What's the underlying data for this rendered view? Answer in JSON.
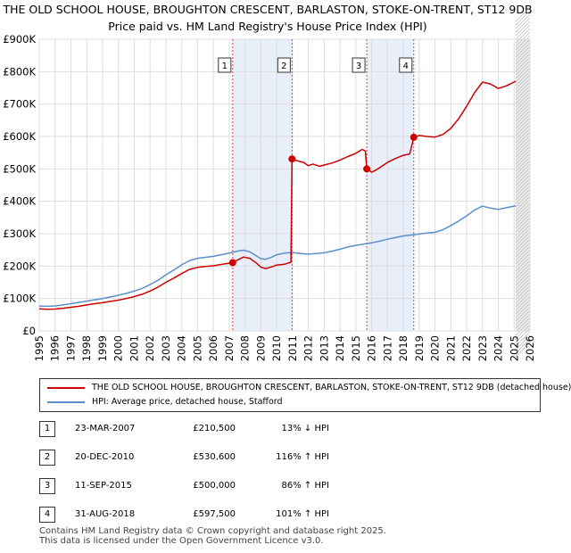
{
  "chart_data": {
    "type": "line",
    "title": "THE OLD SCHOOL HOUSE, BROUGHTON CRESCENT, BARLASTON, STOKE-ON-TRENT, ST12 9DB",
    "subtitle": "Price paid vs. HM Land Registry's House Price Index (HPI)",
    "xlabel": "",
    "ylabel": "",
    "xlim": [
      1995,
      2026
    ],
    "ylim": [
      0,
      900000
    ],
    "x_ticks": [
      "1995",
      "1996",
      "1997",
      "1998",
      "1999",
      "2000",
      "2001",
      "2002",
      "2003",
      "2004",
      "2005",
      "2006",
      "2007",
      "2008",
      "2009",
      "2010",
      "2011",
      "2012",
      "2013",
      "2014",
      "2015",
      "2016",
      "2017",
      "2018",
      "2019",
      "2020",
      "2021",
      "2022",
      "2023",
      "2024",
      "2025",
      "2026"
    ],
    "y_ticks": [
      {
        "value": 0,
        "label": "£0"
      },
      {
        "value": 100000,
        "label": "£100K"
      },
      {
        "value": 200000,
        "label": "£200K"
      },
      {
        "value": 300000,
        "label": "£300K"
      },
      {
        "value": 400000,
        "label": "£400K"
      },
      {
        "value": 500000,
        "label": "£500K"
      },
      {
        "value": 600000,
        "label": "£600K"
      },
      {
        "value": 700000,
        "label": "£700K"
      },
      {
        "value": 800000,
        "label": "£800K"
      },
      {
        "value": 900000,
        "label": "£900K"
      }
    ],
    "grid": true,
    "series": [
      {
        "name": "THE OLD SCHOOL HOUSE, BROUGHTON CRESCENT, BARLASTON, STOKE-ON-TRENT, ST12 9DB (detached house)",
        "color": "#cc0000",
        "points": [
          [
            1995.0,
            68000
          ],
          [
            1995.5,
            67000
          ],
          [
            1996.0,
            67500
          ],
          [
            1996.5,
            70000
          ],
          [
            1997.0,
            73000
          ],
          [
            1997.5,
            76000
          ],
          [
            1998.0,
            80000
          ],
          [
            1998.5,
            84000
          ],
          [
            1999.0,
            87000
          ],
          [
            1999.5,
            91000
          ],
          [
            2000.0,
            95000
          ],
          [
            2000.5,
            100000
          ],
          [
            2001.0,
            106000
          ],
          [
            2001.5,
            113000
          ],
          [
            2002.0,
            123000
          ],
          [
            2002.5,
            135000
          ],
          [
            2003.0,
            150000
          ],
          [
            2003.5,
            163000
          ],
          [
            2004.0,
            177000
          ],
          [
            2004.5,
            190000
          ],
          [
            2005.0,
            196000
          ],
          [
            2005.5,
            199000
          ],
          [
            2006.0,
            201000
          ],
          [
            2006.5,
            205000
          ],
          [
            2007.0,
            209000
          ],
          [
            2007.22,
            210500
          ],
          [
            2007.5,
            218000
          ],
          [
            2007.9,
            228000
          ],
          [
            2008.3,
            224000
          ],
          [
            2008.7,
            210000
          ],
          [
            2009.0,
            197000
          ],
          [
            2009.3,
            192000
          ],
          [
            2009.7,
            198000
          ],
          [
            2010.0,
            203000
          ],
          [
            2010.5,
            206000
          ],
          [
            2010.9,
            212000
          ],
          [
            2010.97,
            530600
          ],
          [
            2011.3,
            525000
          ],
          [
            2011.7,
            520000
          ],
          [
            2012.0,
            510000
          ],
          [
            2012.3,
            515000
          ],
          [
            2012.7,
            508000
          ],
          [
            2013.0,
            512000
          ],
          [
            2013.5,
            518000
          ],
          [
            2014.0,
            527000
          ],
          [
            2014.5,
            538000
          ],
          [
            2015.0,
            548000
          ],
          [
            2015.4,
            560000
          ],
          [
            2015.6,
            555000
          ],
          [
            2015.69,
            500000
          ],
          [
            2016.0,
            490000
          ],
          [
            2016.3,
            497000
          ],
          [
            2016.7,
            510000
          ],
          [
            2017.0,
            520000
          ],
          [
            2017.5,
            532000
          ],
          [
            2018.0,
            542000
          ],
          [
            2018.4,
            546000
          ],
          [
            2018.66,
            597500
          ],
          [
            2019.0,
            603000
          ],
          [
            2019.5,
            600000
          ],
          [
            2020.0,
            598000
          ],
          [
            2020.5,
            606000
          ],
          [
            2021.0,
            625000
          ],
          [
            2021.5,
            655000
          ],
          [
            2022.0,
            693000
          ],
          [
            2022.5,
            735000
          ],
          [
            2023.0,
            768000
          ],
          [
            2023.5,
            762000
          ],
          [
            2024.0,
            748000
          ],
          [
            2024.5,
            756000
          ],
          [
            2025.0,
            768000
          ],
          [
            2025.1,
            770000
          ]
        ]
      },
      {
        "name": "HPI: Average price, detached house, Stafford",
        "color": "#5b8fc9",
        "points": [
          [
            1995.0,
            77000
          ],
          [
            1995.5,
            76000
          ],
          [
            1996.0,
            77000
          ],
          [
            1996.5,
            80000
          ],
          [
            1997.0,
            84000
          ],
          [
            1997.5,
            88000
          ],
          [
            1998.0,
            92000
          ],
          [
            1998.5,
            96000
          ],
          [
            1999.0,
            100000
          ],
          [
            1999.5,
            105000
          ],
          [
            2000.0,
            110000
          ],
          [
            2000.5,
            116000
          ],
          [
            2001.0,
            123000
          ],
          [
            2001.5,
            131000
          ],
          [
            2002.0,
            143000
          ],
          [
            2002.5,
            156000
          ],
          [
            2003.0,
            173000
          ],
          [
            2003.5,
            188000
          ],
          [
            2004.0,
            204000
          ],
          [
            2004.5,
            217000
          ],
          [
            2005.0,
            224000
          ],
          [
            2005.5,
            227000
          ],
          [
            2006.0,
            230000
          ],
          [
            2006.5,
            235000
          ],
          [
            2007.0,
            240000
          ],
          [
            2007.5,
            246000
          ],
          [
            2007.9,
            249000
          ],
          [
            2008.3,
            244000
          ],
          [
            2008.7,
            232000
          ],
          [
            2009.0,
            223000
          ],
          [
            2009.3,
            221000
          ],
          [
            2009.7,
            228000
          ],
          [
            2010.0,
            235000
          ],
          [
            2010.5,
            240000
          ],
          [
            2011.0,
            242000
          ],
          [
            2011.5,
            239000
          ],
          [
            2012.0,
            237000
          ],
          [
            2012.5,
            239000
          ],
          [
            2013.0,
            241000
          ],
          [
            2013.5,
            246000
          ],
          [
            2014.0,
            252000
          ],
          [
            2014.5,
            259000
          ],
          [
            2015.0,
            264000
          ],
          [
            2015.5,
            268000
          ],
          [
            2016.0,
            272000
          ],
          [
            2016.5,
            277000
          ],
          [
            2017.0,
            283000
          ],
          [
            2017.5,
            288000
          ],
          [
            2018.0,
            293000
          ],
          [
            2018.5,
            296000
          ],
          [
            2019.0,
            299000
          ],
          [
            2019.5,
            302000
          ],
          [
            2020.0,
            304000
          ],
          [
            2020.5,
            312000
          ],
          [
            2021.0,
            325000
          ],
          [
            2021.5,
            339000
          ],
          [
            2022.0,
            355000
          ],
          [
            2022.5,
            373000
          ],
          [
            2023.0,
            385000
          ],
          [
            2023.5,
            379000
          ],
          [
            2024.0,
            375000
          ],
          [
            2024.5,
            380000
          ],
          [
            2025.0,
            385000
          ],
          [
            2025.1,
            386000
          ]
        ]
      }
    ],
    "sales": [
      {
        "n": "1",
        "x": 2007.22,
        "price": 210500
      },
      {
        "n": "2",
        "x": 2010.97,
        "price": 530600
      },
      {
        "n": "3",
        "x": 2015.69,
        "price": 500000
      },
      {
        "n": "4",
        "x": 2018.66,
        "price": 597500
      }
    ],
    "shaded_ranges": [
      [
        2007.22,
        2010.97
      ],
      [
        2015.69,
        2018.66
      ]
    ],
    "forecast_start": 2025.1
  },
  "legend": {
    "property_label": "THE OLD SCHOOL HOUSE, BROUGHTON CRESCENT, BARLASTON, STOKE-ON-TRENT, ST12 9DB (detached house)",
    "hpi_label": "HPI: Average price, detached house, Stafford"
  },
  "sales_table": [
    {
      "num": "1",
      "date": "23-MAR-2007",
      "price": "£210,500",
      "hpi": "13% ↓ HPI"
    },
    {
      "num": "2",
      "date": "20-DEC-2010",
      "price": "£530,600",
      "hpi": "116% ↑ HPI"
    },
    {
      "num": "3",
      "date": "11-SEP-2015",
      "price": "£500,000",
      "hpi": "86% ↑ HPI"
    },
    {
      "num": "4",
      "date": "31-AUG-2018",
      "price": "£597,500",
      "hpi": "101% ↑ HPI"
    }
  ],
  "footer": {
    "line1": "Contains HM Land Registry data © Crown copyright and database right 2025.",
    "line2": "This data is licensed under the Open Government Licence v3.0."
  },
  "colors": {
    "property": "#cc0000",
    "hpi": "#5b8fc9",
    "shade": "#e8eefa",
    "grid": "#dddddd"
  }
}
